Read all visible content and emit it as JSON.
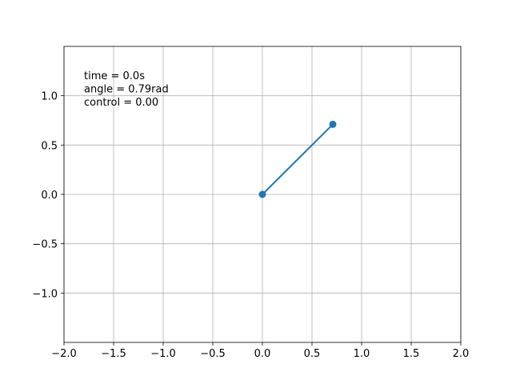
{
  "chart_data": {
    "type": "line",
    "annotations": [
      "time = 0.0s",
      "angle = 0.79rad",
      "control = 0.00"
    ],
    "x": [
      0,
      0.71
    ],
    "series": [
      {
        "color": "#1f77b4",
        "values": [
          0,
          0.71
        ]
      }
    ],
    "xlim": [
      -2,
      2
    ],
    "ylim": [
      -1.5,
      1.5
    ],
    "xticks": [
      {
        "value": -2,
        "label": "−2.0"
      },
      {
        "value": -1.5,
        "label": "−1.5"
      },
      {
        "value": -1,
        "label": "−1.0"
      },
      {
        "value": -0.5,
        "label": "−0.5"
      },
      {
        "value": 0,
        "label": "0.0"
      },
      0.5,
      {
        "value": 1,
        "label": "1.0"
      },
      1.5,
      {
        "value": 2,
        "label": "2.0"
      }
    ],
    "yticks": [
      {
        "value": -1,
        "label": "−1.0"
      },
      {
        "value": -0.5,
        "label": "−0.5"
      },
      {
        "value": 0,
        "label": "0.0"
      },
      0.5,
      {
        "value": 1,
        "label": "1.0"
      }
    ],
    "grid": true
  }
}
